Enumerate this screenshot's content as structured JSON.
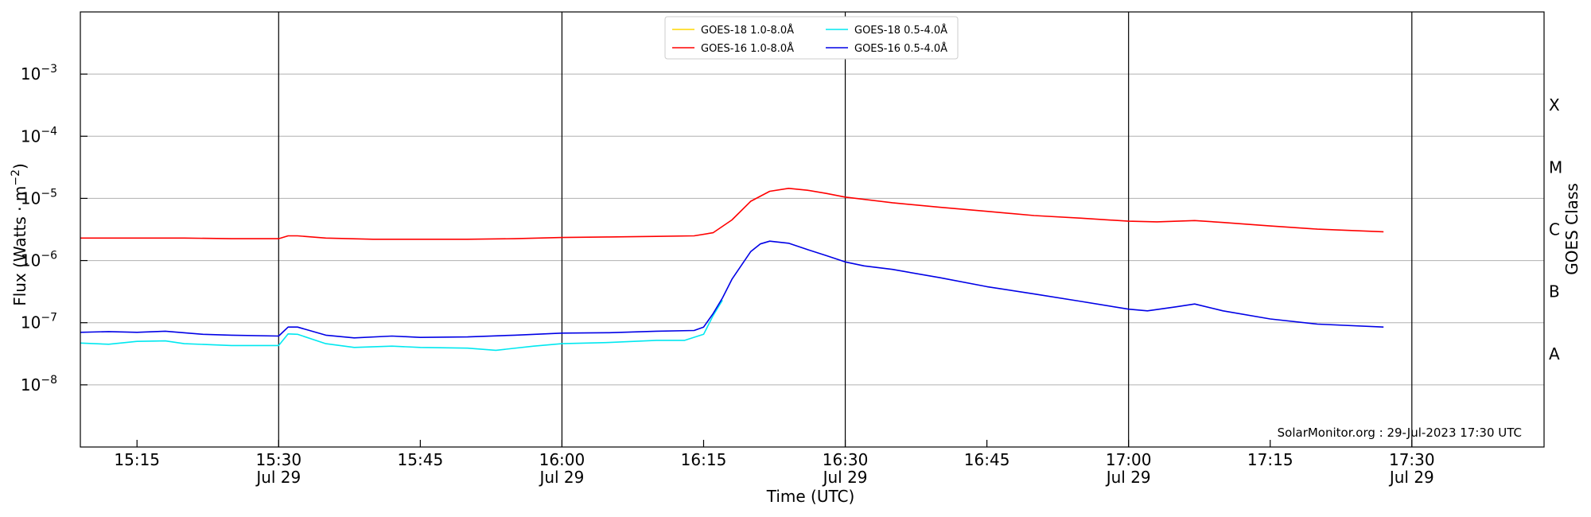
{
  "chart_data": {
    "type": "line",
    "xlabel": "Time (UTC)",
    "ylabel": "Flux (Watts · m",
    "ylabel_sup": "−2",
    "ylabel_end": ")",
    "y2label": "GOES Class",
    "yscale": "log",
    "xlim": [
      "15:09",
      "17:44"
    ],
    "ylim": [
      1e-09,
      0.01
    ],
    "grid": "horizontal",
    "legend_position": "top-center",
    "x_ticks": [
      {
        "time": "15:15",
        "label": "15:15",
        "sublabel": ""
      },
      {
        "time": "15:30",
        "label": "15:30",
        "sublabel": "Jul 29"
      },
      {
        "time": "15:45",
        "label": "15:45",
        "sublabel": ""
      },
      {
        "time": "16:00",
        "label": "16:00",
        "sublabel": "Jul 29"
      },
      {
        "time": "16:15",
        "label": "16:15",
        "sublabel": ""
      },
      {
        "time": "16:30",
        "label": "16:30",
        "sublabel": "Jul 29"
      },
      {
        "time": "16:45",
        "label": "16:45",
        "sublabel": ""
      },
      {
        "time": "17:00",
        "label": "17:00",
        "sublabel": "Jul 29"
      },
      {
        "time": "17:15",
        "label": "17:15",
        "sublabel": ""
      },
      {
        "time": "17:30",
        "label": "17:30",
        "sublabel": "Jul 29"
      }
    ],
    "vertical_lines": [
      "15:30",
      "16:00",
      "16:30",
      "17:00",
      "17:30"
    ],
    "y_ticks": [
      {
        "exp": -3,
        "label": "10",
        "sup": "−3"
      },
      {
        "exp": -4,
        "label": "10",
        "sup": "−4"
      },
      {
        "exp": -5,
        "label": "10",
        "sup": "−5"
      },
      {
        "exp": -6,
        "label": "10",
        "sup": "−6"
      },
      {
        "exp": -7,
        "label": "10",
        "sup": "−7"
      },
      {
        "exp": -8,
        "label": "10",
        "sup": "−8"
      }
    ],
    "goes_classes": [
      {
        "label": "X",
        "exp": -3.5
      },
      {
        "label": "M",
        "exp": -4.5
      },
      {
        "label": "C",
        "exp": -5.5
      },
      {
        "label": "B",
        "exp": -6.5
      },
      {
        "label": "A",
        "exp": -7.5
      }
    ],
    "annotation": "SolarMonitor.org : 29-Jul-2023 17:30 UTC",
    "series": [
      {
        "name": "GOES-18 1.0-8.0Å",
        "color": "#ffd700",
        "points": []
      },
      {
        "name": "GOES-16 1.0-8.0Å",
        "color": "#ff0000",
        "points": [
          [
            "15:09",
            2.3e-06
          ],
          [
            "15:15",
            2.3e-06
          ],
          [
            "15:20",
            2.3e-06
          ],
          [
            "15:25",
            2.25e-06
          ],
          [
            "15:30",
            2.25e-06
          ],
          [
            "15:31",
            2.5e-06
          ],
          [
            "15:32",
            2.5e-06
          ],
          [
            "15:35",
            2.3e-06
          ],
          [
            "15:40",
            2.2e-06
          ],
          [
            "15:45",
            2.2e-06
          ],
          [
            "15:50",
            2.2e-06
          ],
          [
            "15:55",
            2.25e-06
          ],
          [
            "16:00",
            2.35e-06
          ],
          [
            "16:05",
            2.4e-06
          ],
          [
            "16:10",
            2.45e-06
          ],
          [
            "16:14",
            2.5e-06
          ],
          [
            "16:16",
            2.8e-06
          ],
          [
            "16:18",
            4.5e-06
          ],
          [
            "16:20",
            9e-06
          ],
          [
            "16:22",
            1.3e-05
          ],
          [
            "16:24",
            1.45e-05
          ],
          [
            "16:26",
            1.35e-05
          ],
          [
            "16:28",
            1.2e-05
          ],
          [
            "16:30",
            1.05e-05
          ],
          [
            "16:35",
            8.5e-06
          ],
          [
            "16:40",
            7.2e-06
          ],
          [
            "16:45",
            6.2e-06
          ],
          [
            "16:50",
            5.3e-06
          ],
          [
            "16:55",
            4.8e-06
          ],
          [
            "17:00",
            4.3e-06
          ],
          [
            "17:03",
            4.2e-06
          ],
          [
            "17:07",
            4.4e-06
          ],
          [
            "17:10",
            4.1e-06
          ],
          [
            "17:15",
            3.6e-06
          ],
          [
            "17:20",
            3.2e-06
          ],
          [
            "17:27",
            2.9e-06
          ]
        ]
      },
      {
        "name": "GOES-18 0.5-4.0Å",
        "color": "#00e8f0",
        "points": [
          [
            "15:09",
            4.7e-08
          ],
          [
            "15:12",
            4.5e-08
          ],
          [
            "15:15",
            5e-08
          ],
          [
            "15:18",
            5.1e-08
          ],
          [
            "15:20",
            4.6e-08
          ],
          [
            "15:25",
            4.3e-08
          ],
          [
            "15:30",
            4.3e-08
          ],
          [
            "15:31",
            6.6e-08
          ],
          [
            "15:32",
            6.5e-08
          ],
          [
            "15:35",
            4.6e-08
          ],
          [
            "15:38",
            4e-08
          ],
          [
            "15:42",
            4.2e-08
          ],
          [
            "15:45",
            4e-08
          ],
          [
            "15:50",
            3.9e-08
          ],
          [
            "15:53",
            3.6e-08
          ],
          [
            "15:57",
            4.2e-08
          ],
          [
            "16:00",
            4.6e-08
          ],
          [
            "16:05",
            4.8e-08
          ],
          [
            "16:10",
            5.2e-08
          ],
          [
            "16:13",
            5.2e-08
          ],
          [
            "16:15",
            6.5e-08
          ],
          [
            "16:16",
            1.3e-07
          ],
          [
            "16:17",
            2.3e-07
          ]
        ]
      },
      {
        "name": "GOES-16 0.5-4.0Å",
        "color": "#0000e6",
        "points": [
          [
            "15:09",
            7e-08
          ],
          [
            "15:12",
            7.2e-08
          ],
          [
            "15:15",
            7e-08
          ],
          [
            "15:18",
            7.3e-08
          ],
          [
            "15:22",
            6.5e-08
          ],
          [
            "15:25",
            6.3e-08
          ],
          [
            "15:30",
            6.1e-08
          ],
          [
            "15:31",
            8.5e-08
          ],
          [
            "15:32",
            8.5e-08
          ],
          [
            "15:35",
            6.3e-08
          ],
          [
            "15:38",
            5.7e-08
          ],
          [
            "15:42",
            6.1e-08
          ],
          [
            "15:45",
            5.8e-08
          ],
          [
            "15:50",
            5.9e-08
          ],
          [
            "15:55",
            6.3e-08
          ],
          [
            "16:00",
            6.8e-08
          ],
          [
            "16:05",
            6.9e-08
          ],
          [
            "16:10",
            7.3e-08
          ],
          [
            "16:14",
            7.5e-08
          ],
          [
            "16:15",
            8.5e-08
          ],
          [
            "16:16",
            1.4e-07
          ],
          [
            "16:17",
            2.5e-07
          ],
          [
            "16:18",
            5e-07
          ],
          [
            "16:20",
            1.4e-06
          ],
          [
            "16:21",
            1.85e-06
          ],
          [
            "16:22",
            2.05e-06
          ],
          [
            "16:24",
            1.9e-06
          ],
          [
            "16:26",
            1.5e-06
          ],
          [
            "16:28",
            1.2e-06
          ],
          [
            "16:30",
            9.5e-07
          ],
          [
            "16:32",
            8.2e-07
          ],
          [
            "16:35",
            7.2e-07
          ],
          [
            "16:40",
            5.3e-07
          ],
          [
            "16:45",
            3.8e-07
          ],
          [
            "16:50",
            2.9e-07
          ],
          [
            "16:55",
            2.2e-07
          ],
          [
            "17:00",
            1.65e-07
          ],
          [
            "17:02",
            1.55e-07
          ],
          [
            "17:05",
            1.8e-07
          ],
          [
            "17:07",
            2e-07
          ],
          [
            "17:10",
            1.55e-07
          ],
          [
            "17:15",
            1.15e-07
          ],
          [
            "17:20",
            9.5e-08
          ],
          [
            "17:27",
            8.5e-08
          ]
        ]
      }
    ]
  }
}
